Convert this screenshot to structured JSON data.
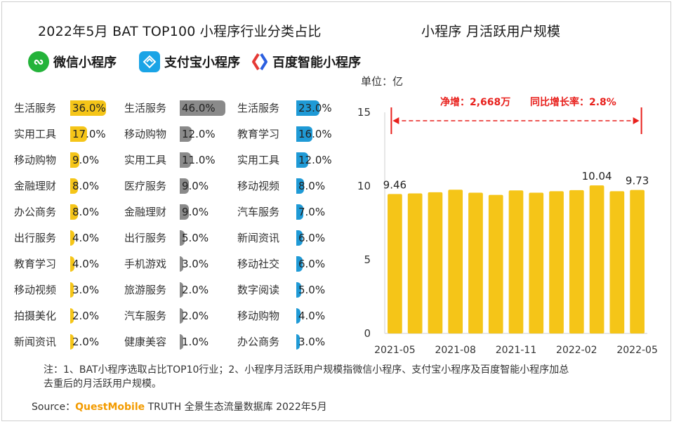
{
  "left_title": "2022年5月 BAT TOP100 小程序行业分类占比",
  "right_title": "小程序 月活跃用户规模",
  "legend": [
    {
      "label": "微信小程序",
      "icon": "wechat-miniprogram-icon",
      "color": "#24b33a"
    },
    {
      "label": "支付宝小程序",
      "icon": "alipay-miniprogram-icon",
      "color": "#1aa4e6"
    },
    {
      "label": "百度智能小程序",
      "icon": "baidu-smart-miniprogram-icon",
      "color": "#2b5fe0"
    }
  ],
  "chart_data": [
    {
      "type": "bar",
      "orientation": "horizontal",
      "series": [
        {
          "name": "微信小程序",
          "color": "#f5c518",
          "categories": [
            "生活服务",
            "实用工具",
            "移动购物",
            "金融理财",
            "办公商务",
            "出行服务",
            "教育学习",
            "移动视频",
            "拍摄美化",
            "新闻资讯"
          ],
          "values": [
            36.0,
            17.0,
            9.0,
            8.0,
            8.0,
            4.0,
            4.0,
            3.0,
            2.0,
            2.0
          ],
          "labels": [
            "36.0%",
            "17.0%",
            "9.0%",
            "8.0%",
            "8.0%",
            "4.0%",
            "4.0%",
            "3.0%",
            "2.0%",
            "2.0%"
          ]
        },
        {
          "name": "支付宝小程序",
          "color": "#8a8a8a",
          "categories": [
            "生活服务",
            "移动购物",
            "实用工具",
            "医疗服务",
            "金融理财",
            "出行服务",
            "手机游戏",
            "旅游服务",
            "汽车服务",
            "健康美容"
          ],
          "values": [
            46.0,
            12.0,
            11.0,
            9.0,
            9.0,
            5.0,
            3.0,
            2.0,
            2.0,
            1.0
          ],
          "labels": [
            "46.0%",
            "12.0%",
            "11.0%",
            "9.0%",
            "9.0%",
            "5.0%",
            "3.0%",
            "2.0%",
            "2.0%",
            "1.0%"
          ]
        },
        {
          "name": "百度智能小程序",
          "color": "#1f9ad6",
          "categories": [
            "生活服务",
            "教育学习",
            "实用工具",
            "移动视频",
            "汽车服务",
            "新闻资讯",
            "移动社交",
            "数字阅读",
            "移动购物",
            "办公商务"
          ],
          "values": [
            23.0,
            16.0,
            12.0,
            8.0,
            7.0,
            6.0,
            6.0,
            5.0,
            4.0,
            3.0
          ],
          "labels": [
            "23.0%",
            "16.0%",
            "12.0%",
            "8.0%",
            "7.0%",
            "6.0%",
            "6.0%",
            "5.0%",
            "4.0%",
            "3.0%"
          ]
        }
      ]
    },
    {
      "type": "bar",
      "unit": "单位：亿",
      "x": [
        "2021-05",
        "2021-06",
        "2021-07",
        "2021-08",
        "2021-09",
        "2021-10",
        "2021-11",
        "2021-12",
        "2022-01",
        "2022-02",
        "2022-03",
        "2022-04",
        "2022-05"
      ],
      "xticks": [
        "2021-05",
        "2021-08",
        "2021-11",
        "2022-02",
        "2022-05"
      ],
      "values": [
        9.46,
        9.5,
        9.58,
        9.75,
        9.55,
        9.4,
        9.7,
        9.55,
        9.65,
        9.72,
        10.04,
        9.65,
        9.73
      ],
      "data_labels": {
        "0": "9.46",
        "10": "10.04",
        "12": "9.73"
      },
      "ylim": [
        0,
        15
      ],
      "yticks": [
        0,
        5,
        10,
        15
      ],
      "color": "#f5c518",
      "annotation": {
        "left": "净增：2,668万",
        "right": "同比增长率：2.8%",
        "color": "#e8211d"
      }
    }
  ],
  "note_line1": "注：1、BAT小程序选取占比TOP10行业；2、小程序月活跃用户规模指微信小程序、支付宝小程序及百度智能小程序加总",
  "note_line2": "去重后的月活跃用户规模。",
  "source_prefix": "Source：",
  "source_brand": "QuestMobile",
  "source_rest": " TRUTH 全景生态流量数据库 2022年5月"
}
